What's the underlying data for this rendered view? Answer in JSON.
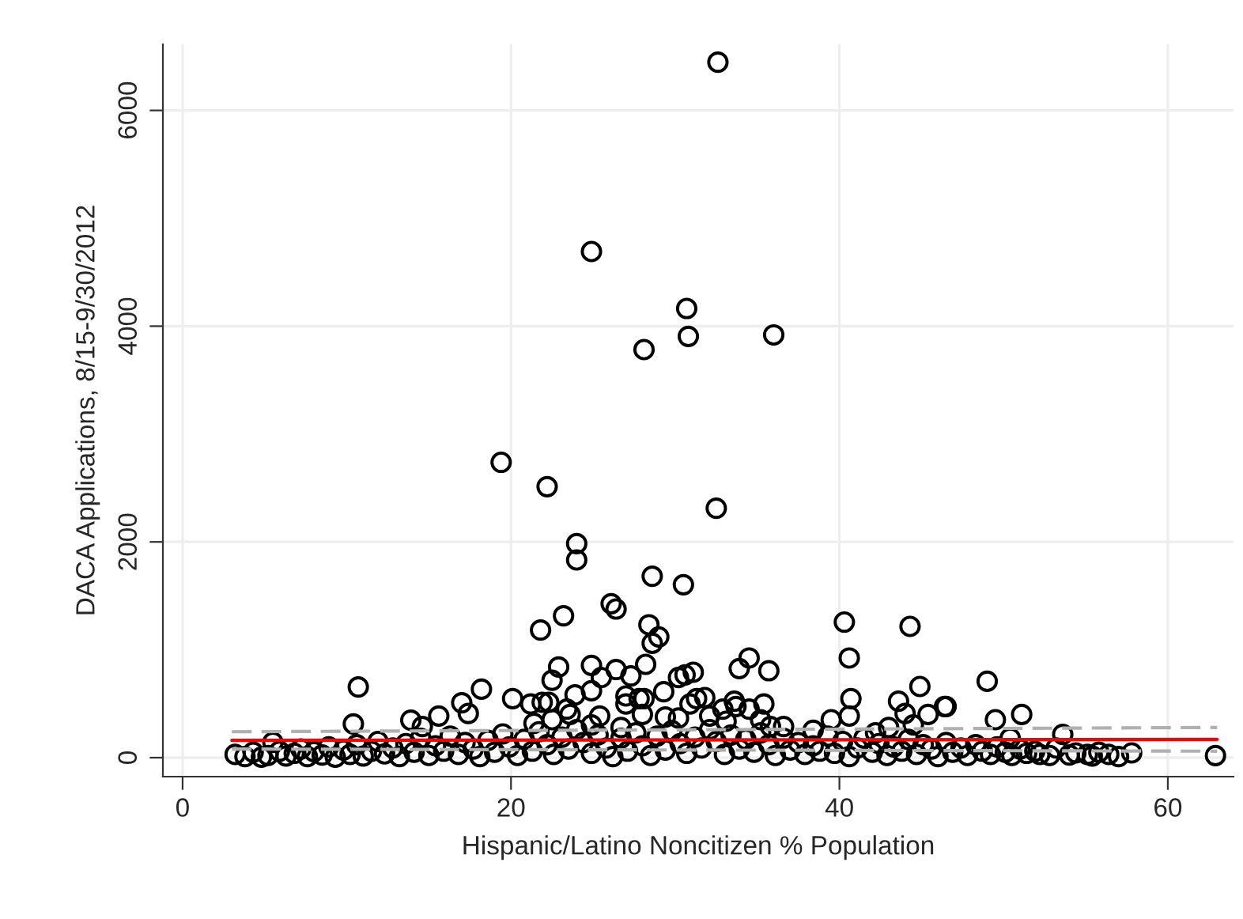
{
  "chart_data": {
    "type": "scatter",
    "xlabel": "Hispanic/Latino Noncitizen % Population",
    "ylabel": "DACA Applications, 8/15-9/30/2012",
    "xlim": [
      -1.2,
      64
    ],
    "ylim": [
      -176,
      6613
    ],
    "xticks": [
      0,
      20,
      40,
      60
    ],
    "yticks": [
      0,
      2000,
      4000,
      6000
    ],
    "grid": true,
    "series": [
      {
        "color": "#000000",
        "marker": "circle",
        "x": [
          32.6,
          24.9,
          30.7,
          30.8,
          28.1,
          36.0,
          19.4,
          22.2,
          32.5,
          24.0,
          24.0,
          28.6,
          30.5,
          26.1,
          26.4,
          23.2,
          40.3,
          10.7,
          10.4,
          13.9,
          14.6,
          15.6,
          17.0,
          17.4,
          18.2,
          20.1,
          21.2,
          21.9,
          21.8,
          21.4,
          22.5,
          5.5,
          28.4,
          29.0,
          28.6,
          22.9,
          24.9,
          25.5,
          26.4,
          27.3,
          28.2,
          24.9,
          23.9,
          23.4,
          23.6,
          27.0,
          27.8,
          28.1,
          29.3,
          27.0,
          28.0,
          25.4,
          30.2,
          30.6,
          31.1,
          33.9,
          34.5,
          35.7,
          31.3,
          31.8,
          30.9,
          30.2,
          29.4,
          32.1,
          32.9,
          33.6,
          33.7,
          34.5,
          35.4,
          33.1,
          35.2,
          35.8,
          36.6,
          38.4,
          39.5,
          40.6,
          40.6,
          40.7,
          44.3,
          44.9,
          43.6,
          44.0,
          44.5,
          45.4,
          46.4,
          43.0,
          42.2,
          22.3,
          22.5,
          24.9,
          26.7,
          49.0,
          46.5,
          49.5,
          51.1,
          53.6,
          50.4,
          57.8,
          56.4,
          55.8,
          55.1,
          54.4,
          52.2,
          62.9,
          3.2,
          3.8,
          4.3,
          4.8,
          5.2,
          5.9,
          6.3,
          6.8,
          7.2,
          7.6,
          8.0,
          8.5,
          8.9,
          9.3,
          9.8,
          10.2,
          10.6,
          11.0,
          11.5,
          11.9,
          12.3,
          12.8,
          13.2,
          13.6,
          14.1,
          14.5,
          15.0,
          15.4,
          15.9,
          16.3,
          16.8,
          17.2,
          17.7,
          18.1,
          18.6,
          19.0,
          19.5,
          19.9,
          20.4,
          20.8,
          21.3,
          21.7,
          22.2,
          22.6,
          23.1,
          23.5,
          24.0,
          24.4,
          24.9,
          25.3,
          25.8,
          26.2,
          26.7,
          27.1,
          27.6,
          28.0,
          28.5,
          28.9,
          29.4,
          29.8,
          30.3,
          30.7,
          31.2,
          31.6,
          32.1,
          32.5,
          33.0,
          33.4,
          33.9,
          34.3,
          34.8,
          35.2,
          35.7,
          36.1,
          36.6,
          37.0,
          37.5,
          37.9,
          38.4,
          38.8,
          39.3,
          39.7,
          40.2,
          40.6,
          41.1,
          41.5,
          42.0,
          42.4,
          42.9,
          43.3,
          43.8,
          44.2,
          44.7,
          45.1,
          45.6,
          46.0,
          46.5,
          46.9,
          47.4,
          47.8,
          48.3,
          48.7,
          49.2,
          49.6,
          50.1,
          50.5,
          51.0,
          51.4,
          51.9,
          52.8,
          53.2,
          54.0,
          55.4,
          57.0
        ],
        "values": [
          6447,
          4692,
          4164,
          3905,
          3783,
          3919,
          2738,
          2512,
          2312,
          1984,
          1833,
          1682,
          1603,
          1427,
          1378,
          1315,
          1257,
          655,
          312,
          347,
          289,
          386,
          509,
          410,
          635,
          547,
          498,
          513,
          1183,
          318,
          718,
          142,
          1232,
          1119,
          1060,
          840,
          855,
          743,
          817,
          758,
          865,
          620,
          582,
          450,
          400,
          572,
          547,
          547,
          611,
          498,
          400,
          386,
          743,
          767,
          792,
          826,
          924,
          806,
          547,
          557,
          498,
          367,
          377,
          386,
          450,
          523,
          474,
          450,
          498,
          337,
          352,
          289,
          289,
          254,
          352,
          386,
          924,
          547,
          1217,
          660,
          523,
          410,
          303,
          400,
          474,
          279,
          230,
          513,
          352,
          303,
          279,
          708,
          474,
          352,
          400,
          215,
          180,
          44,
          30,
          50,
          30,
          44,
          30,
          19,
          30,
          10,
          50,
          5,
          20,
          60,
          15,
          40,
          80,
          10,
          55,
          25,
          100,
          5,
          70,
          30,
          120,
          15,
          60,
          150,
          35,
          90,
          10,
          130,
          50,
          180,
          20,
          110,
          60,
          200,
          30,
          140,
          80,
          10,
          160,
          50,
          220,
          100,
          20,
          170,
          60,
          240,
          120,
          30,
          190,
          80,
          260,
          140,
          40,
          210,
          90,
          10,
          180,
          60,
          230,
          110,
          20,
          200,
          70,
          250,
          130,
          40,
          190,
          90,
          260,
          150,
          30,
          210,
          80,
          170,
          50,
          230,
          120,
          20,
          180,
          70,
          140,
          30,
          110,
          60,
          200,
          40,
          150,
          10,
          90,
          180,
          50,
          130,
          20,
          100,
          60,
          170,
          30,
          120,
          80,
          10,
          140,
          50,
          90,
          20,
          120,
          60,
          30,
          100,
          50,
          20,
          80,
          40,
          60,
          20,
          90,
          25,
          15,
          10
        ]
      },
      {
        "type": "line",
        "color": "#b0b0b0",
        "line_style": "dashed",
        "marker": "none",
        "x": [
          3.0,
          63.0
        ],
        "values": [
          240,
          280
        ]
      },
      {
        "type": "line",
        "color": "#b0b0b0",
        "line_style": "dashed",
        "marker": "none",
        "x": [
          3.0,
          63.0
        ],
        "values": [
          80,
          60
        ]
      },
      {
        "type": "line",
        "color": "#ff0000",
        "line_style": "solid",
        "marker": "none",
        "x": [
          3.0,
          63.0
        ],
        "values": [
          160,
          170
        ]
      }
    ]
  }
}
